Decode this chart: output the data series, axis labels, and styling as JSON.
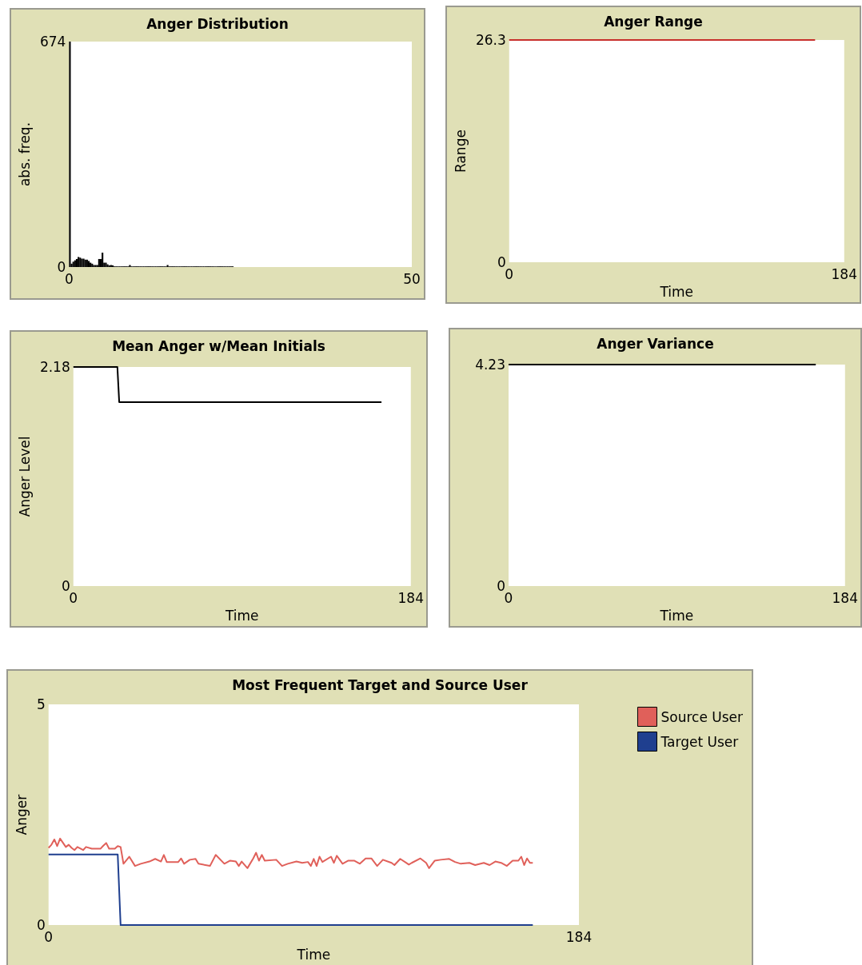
{
  "chart_data": [
    {
      "type": "histogram",
      "title": "Anger Distribution",
      "ylabel": "abs. freq.",
      "color": "#000000",
      "bins": [
        0,
        0.25,
        0.5,
        0.75,
        1,
        1.25,
        1.5,
        1.75,
        2,
        2.25,
        2.5,
        2.75,
        3,
        3.25,
        3.5,
        3.75,
        4,
        4.25,
        4.5,
        4.75,
        5,
        5.25,
        5.5,
        5.75,
        6,
        6.25,
        6.5,
        6.75,
        7,
        7.25,
        7.5,
        7.75,
        8,
        8.25,
        8.5,
        8.75,
        9,
        9.25,
        9.5,
        9.75,
        10,
        10.25,
        10.5,
        10.75,
        11,
        11.25,
        11.5,
        11.75,
        12,
        12.25,
        12.5,
        12.75,
        13,
        13.25,
        13.5,
        13.75,
        14,
        14.25,
        14.5,
        14.75,
        15,
        15.25,
        15.5,
        15.75,
        16,
        16.25,
        16.5,
        16.75,
        17,
        17.25,
        17.5,
        17.75,
        18,
        18.25,
        18.5,
        18.75,
        19,
        19.25,
        19.5,
        19.75,
        20,
        20.25,
        20.5,
        20.75,
        21,
        21.25,
        21.5,
        21.75,
        22,
        22.25,
        22.5,
        22.75,
        23,
        23.25,
        23.5,
        23.75,
        24
      ],
      "values": [
        674,
        10,
        16,
        20,
        24,
        30,
        28,
        25,
        25,
        22,
        22,
        18,
        13,
        10,
        6,
        6,
        6,
        24,
        24,
        43,
        13,
        13,
        8,
        5,
        6,
        5,
        2,
        2,
        2,
        2,
        2,
        2,
        2,
        2,
        2,
        6,
        2,
        2,
        2,
        2,
        2,
        2,
        2,
        2,
        2,
        2,
        2,
        2,
        2,
        2,
        2,
        2,
        2,
        2,
        2,
        2,
        2,
        6,
        2,
        2,
        2,
        2,
        2,
        2,
        2,
        2,
        2,
        2,
        2,
        2,
        2,
        2,
        2,
        2,
        2,
        2,
        2,
        2,
        2,
        2,
        2,
        2,
        2,
        2,
        2,
        2,
        2,
        2,
        2,
        2,
        2,
        2,
        2,
        2,
        2,
        2
      ],
      "xlim": [
        0,
        50
      ],
      "xticks": [
        0,
        50
      ],
      "ylim": [
        0,
        674
      ],
      "yticks": [
        0,
        674
      ]
    },
    {
      "type": "line",
      "title": "Anger Range",
      "xlabel": "Time",
      "ylabel": "Range",
      "marker": "none",
      "series": [
        {
          "color": "#c8302c",
          "x": [
            0,
            168
          ],
          "values": [
            26.3,
            26.3
          ]
        }
      ],
      "xlim": [
        0,
        184
      ],
      "xticks": [
        0,
        184
      ],
      "ylim": [
        0,
        26.3
      ],
      "yticks": [
        0,
        26.3
      ]
    },
    {
      "type": "line",
      "title": "Mean Anger w/Mean Initials",
      "xlabel": "Time",
      "ylabel": "Anger Level",
      "marker": "none",
      "series": [
        {
          "color": "#000000",
          "x": [
            0,
            24,
            25,
            168
          ],
          "values": [
            2.18,
            2.18,
            1.83,
            1.83
          ]
        }
      ],
      "xlim": [
        0,
        184
      ],
      "xticks": [
        0,
        184
      ],
      "ylim": [
        0,
        2.18
      ],
      "yticks": [
        0,
        2.18
      ]
    },
    {
      "type": "line",
      "title": "Anger Variance",
      "xlabel": "Time",
      "marker": "none",
      "series": [
        {
          "color": "#000000",
          "x": [
            0,
            168
          ],
          "values": [
            4.23,
            4.23
          ]
        }
      ],
      "xlim": [
        0,
        184
      ],
      "xticks": [
        0,
        184
      ],
      "ylim": [
        0,
        4.23
      ],
      "yticks": [
        0,
        4.23
      ]
    },
    {
      "type": "line",
      "title": "Most Frequent Target and Source User",
      "xlabel": "Time",
      "ylabel": "Anger",
      "marker": "none",
      "legend": "top right",
      "series": [
        {
          "name": "Source User",
          "color": "#e0605a",
          "x": [
            0,
            1,
            2,
            3,
            4,
            6,
            7,
            8,
            9,
            10,
            12,
            13,
            15,
            18,
            19,
            20,
            21,
            23,
            24,
            25,
            26,
            28,
            30,
            32,
            35,
            37,
            39,
            40,
            41,
            45,
            46,
            47,
            49,
            51,
            52,
            56,
            58,
            61,
            63,
            65,
            66,
            67,
            69,
            71,
            72,
            73,
            74,
            75,
            79,
            81,
            83,
            86,
            88,
            90,
            91,
            92,
            93,
            94,
            95,
            98,
            99,
            100,
            102,
            104,
            106,
            108,
            110,
            112,
            114,
            116,
            119,
            120,
            122,
            125,
            126,
            129,
            131,
            132,
            134,
            136,
            139,
            141,
            143,
            146,
            148,
            151,
            153,
            155,
            157,
            159,
            161,
            163,
            164,
            165,
            166,
            167,
            168
          ],
          "values": [
            1.75,
            1.82,
            1.94,
            1.79,
            1.96,
            1.77,
            1.82,
            1.75,
            1.7,
            1.77,
            1.7,
            1.77,
            1.73,
            1.73,
            1.8,
            1.86,
            1.73,
            1.73,
            1.79,
            1.77,
            1.39,
            1.55,
            1.34,
            1.39,
            1.44,
            1.5,
            1.44,
            1.59,
            1.43,
            1.43,
            1.51,
            1.39,
            1.48,
            1.5,
            1.39,
            1.34,
            1.59,
            1.39,
            1.46,
            1.44,
            1.34,
            1.44,
            1.29,
            1.51,
            1.64,
            1.46,
            1.59,
            1.46,
            1.48,
            1.34,
            1.39,
            1.44,
            1.41,
            1.43,
            1.34,
            1.5,
            1.34,
            1.55,
            1.43,
            1.55,
            1.41,
            1.57,
            1.39,
            1.46,
            1.46,
            1.39,
            1.51,
            1.51,
            1.34,
            1.48,
            1.41,
            1.36,
            1.5,
            1.37,
            1.41,
            1.51,
            1.41,
            1.29,
            1.46,
            1.48,
            1.5,
            1.43,
            1.39,
            1.41,
            1.36,
            1.41,
            1.36,
            1.44,
            1.41,
            1.34,
            1.46,
            1.46,
            1.55,
            1.36,
            1.51,
            1.41,
            1.41
          ]
        },
        {
          "name": "Target User",
          "color": "#1f3f8f",
          "x": [
            0,
            24,
            25,
            168
          ],
          "values": [
            1.6,
            1.6,
            0,
            0
          ]
        }
      ],
      "xlim": [
        0,
        184
      ],
      "xticks": [
        0,
        184
      ],
      "ylim": [
        0,
        5
      ],
      "yticks": [
        0,
        5
      ]
    }
  ]
}
